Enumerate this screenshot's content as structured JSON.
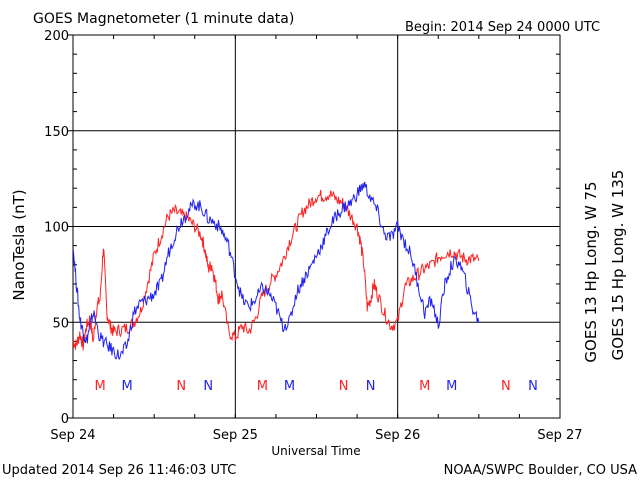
{
  "header": {
    "title": "GOES Magnetometer (1 minute data)",
    "begin": "Begin:  2014 Sep 24 0000 UTC"
  },
  "footer": {
    "updated": "Updated 2014 Sep 26 11:46:03 UTC",
    "credit": "NOAA/SWPC Boulder, CO USA"
  },
  "colors": {
    "goes13": "#ff2222",
    "goes15": "#2222ee",
    "grid": "#000000",
    "axis": "#000000"
  },
  "chart_data": {
    "type": "line",
    "title": "GOES Magnetometer (1 minute data)",
    "xlabel": "Universal Time",
    "ylabel": "NanoTesla (nT)",
    "xlim": [
      "2014-09-24 00:00",
      "2014-09-27 00:00"
    ],
    "ylim": [
      0,
      200
    ],
    "grid": true,
    "x_ticks": [
      "Sep 24",
      "Sep 25",
      "Sep 26",
      "Sep 27"
    ],
    "y_ticks": [
      0,
      50,
      100,
      150,
      200
    ],
    "legend_position": "right-vertical",
    "series": [
      {
        "name": "GOES 13 Hp  Long. W 75",
        "color": "#ff2222",
        "x_hours": [
          0,
          0.5,
          1,
          1.5,
          2,
          2.5,
          3,
          3.5,
          4,
          4.5,
          5,
          5.5,
          6,
          7,
          8,
          9,
          10,
          11,
          12,
          13,
          14,
          15,
          16,
          17,
          18,
          19,
          19.5,
          20,
          20.5,
          21,
          21.5,
          22,
          23,
          24,
          25,
          26,
          27,
          28,
          29,
          30,
          31,
          32,
          33,
          34,
          35,
          36,
          37,
          38,
          39,
          40,
          41,
          42,
          42.5,
          43,
          43.5,
          44,
          44.5,
          45,
          46,
          47,
          48,
          49,
          50,
          51,
          52,
          53,
          54,
          55,
          56,
          57,
          58,
          59,
          60
        ],
        "values": [
          40,
          38,
          44,
          38,
          48,
          52,
          40,
          58,
          62,
          90,
          55,
          48,
          45,
          46,
          47,
          50,
          56,
          70,
          85,
          95,
          105,
          108,
          106,
          104,
          100,
          95,
          88,
          78,
          80,
          72,
          62,
          65,
          45,
          42,
          48,
          45,
          52,
          64,
          70,
          75,
          82,
          92,
          100,
          108,
          112,
          116,
          116,
          117,
          114,
          112,
          106,
          100,
          92,
          80,
          58,
          62,
          70,
          65,
          55,
          48,
          50,
          68,
          72,
          75,
          78,
          80,
          84,
          86,
          87,
          85,
          83,
          83,
          82
        ]
      },
      {
        "name": "GOES 15 Hp  Long. W 135",
        "color": "#2222ee",
        "x_hours": [
          0,
          0.5,
          1,
          1.5,
          2,
          2.5,
          3,
          4,
          5,
          6,
          7,
          8,
          9,
          10,
          11,
          12,
          13,
          14,
          15,
          16,
          17,
          18,
          19,
          20,
          21,
          22,
          23,
          24,
          25,
          26,
          27,
          28,
          29,
          30,
          31,
          32,
          33,
          34,
          35,
          36,
          37,
          38,
          39,
          40,
          41,
          42,
          43,
          44,
          45,
          46,
          47,
          48,
          49,
          50,
          51,
          52,
          53,
          54,
          55,
          56,
          57,
          58,
          59,
          60
        ],
        "values": [
          90,
          70,
          52,
          45,
          40,
          48,
          55,
          42,
          38,
          35,
          32,
          38,
          55,
          60,
          62,
          65,
          70,
          85,
          95,
          103,
          108,
          112,
          110,
          104,
          102,
          98,
          90,
          75,
          62,
          58,
          62,
          68,
          65,
          58,
          48,
          50,
          65,
          72,
          78,
          85,
          92,
          100,
          106,
          110,
          112,
          117,
          122,
          115,
          108,
          96,
          94,
          100,
          92,
          85,
          70,
          55,
          62,
          48,
          70,
          80,
          82,
          72,
          58,
          50
        ]
      }
    ],
    "annotations": [
      {
        "label": "M",
        "hour": 4,
        "color": "#ff2222"
      },
      {
        "label": "M",
        "hour": 8,
        "color": "#2222ee"
      },
      {
        "label": "N",
        "hour": 16,
        "color": "#ff2222"
      },
      {
        "label": "N",
        "hour": 20,
        "color": "#2222ee"
      },
      {
        "label": "M",
        "hour": 28,
        "color": "#ff2222"
      },
      {
        "label": "M",
        "hour": 32,
        "color": "#2222ee"
      },
      {
        "label": "N",
        "hour": 40,
        "color": "#ff2222"
      },
      {
        "label": "N",
        "hour": 44,
        "color": "#2222ee"
      },
      {
        "label": "M",
        "hour": 52,
        "color": "#ff2222"
      },
      {
        "label": "M",
        "hour": 56,
        "color": "#2222ee"
      },
      {
        "label": "N",
        "hour": 64,
        "color": "#ff2222"
      },
      {
        "label": "N",
        "hour": 68,
        "color": "#2222ee"
      }
    ]
  }
}
